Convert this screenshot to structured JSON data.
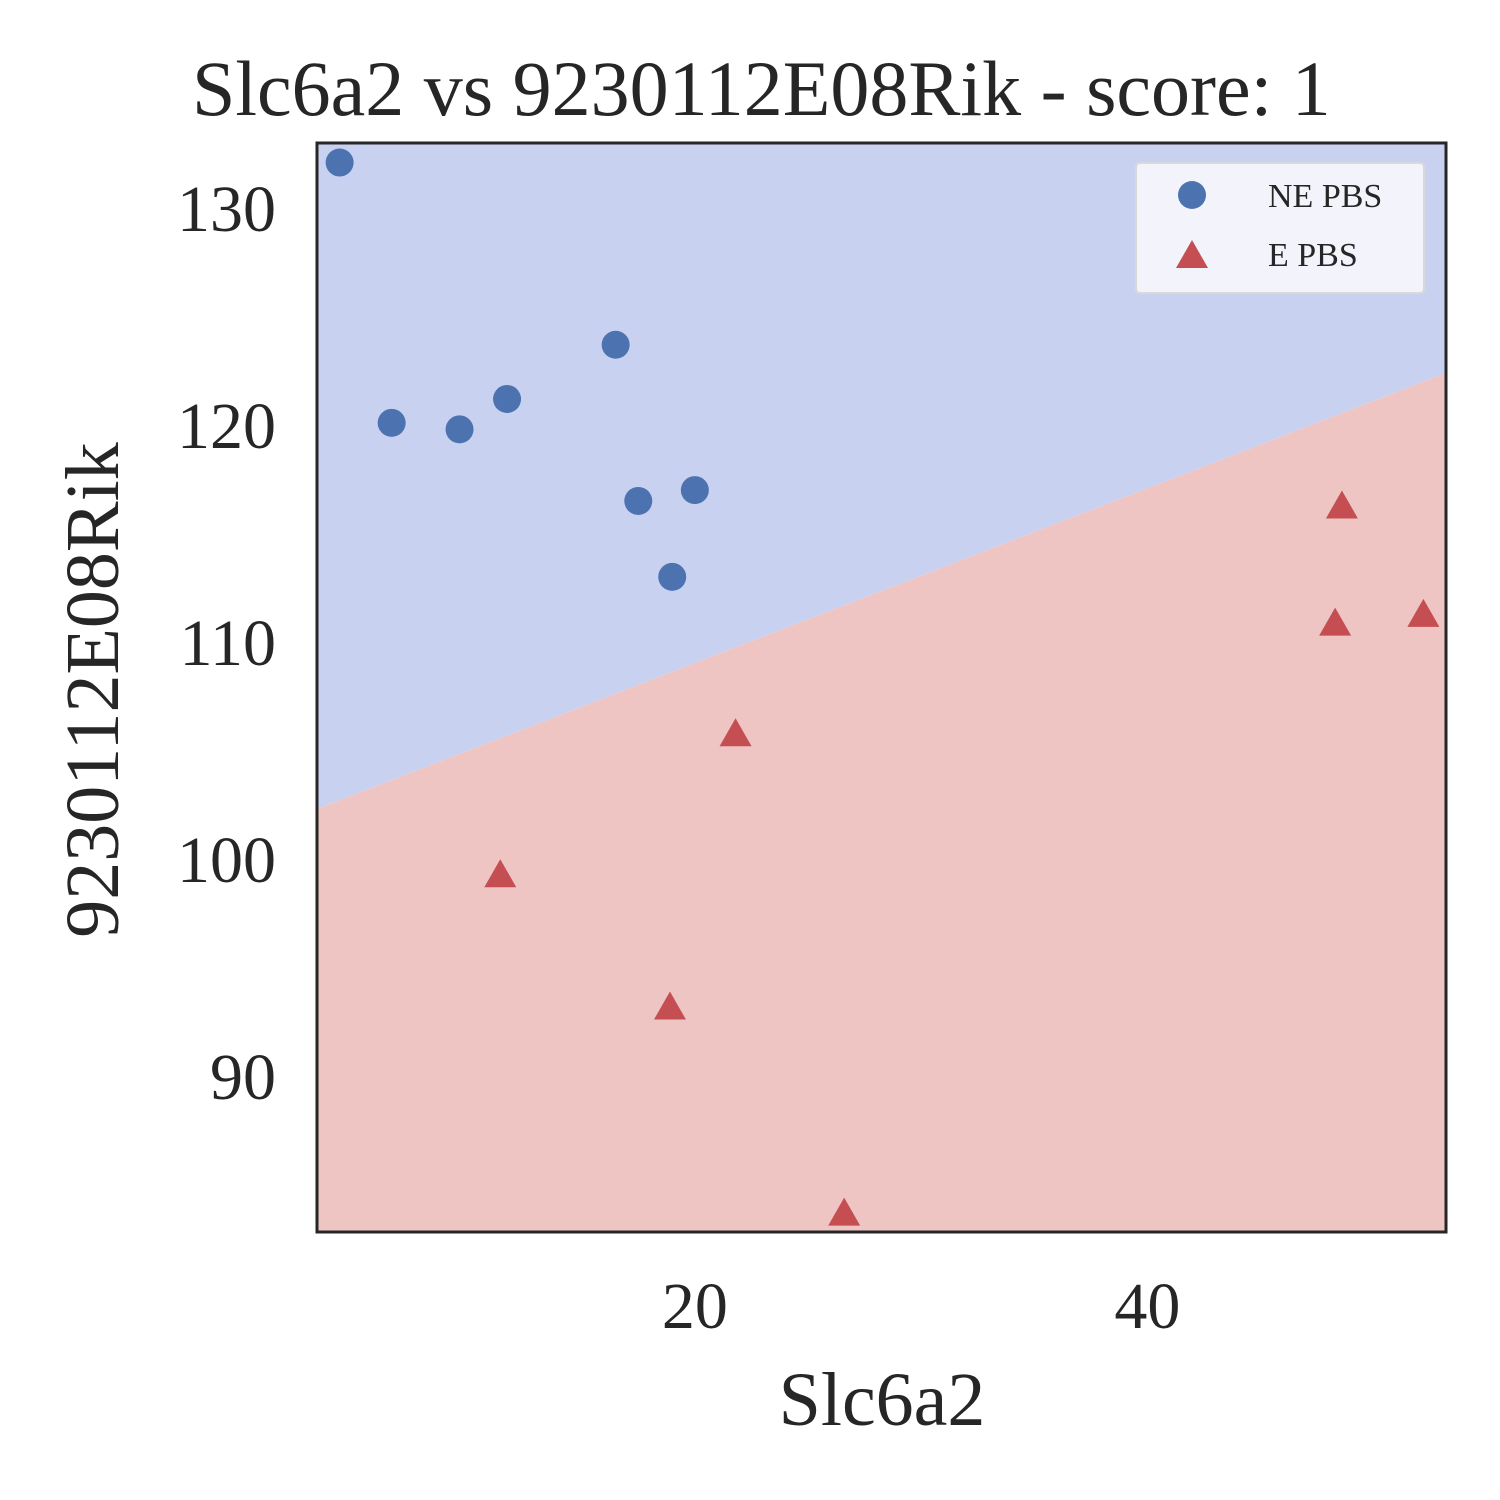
{
  "chart_data": {
    "type": "scatter",
    "title": "Slc6a2 vs 9230112E08Rik - score: 1",
    "xlabel": "Slc6a2",
    "ylabel": "9230112E08Rik",
    "xlim": [
      3.3,
      53.2
    ],
    "ylim": [
      82.8,
      133.0
    ],
    "xticks": [
      20,
      40
    ],
    "yticks": [
      90,
      100,
      110,
      120,
      130
    ],
    "grid": false,
    "legend_position": "top-right",
    "decision_boundary": {
      "points": [
        [
          3.3,
          102.3
        ],
        [
          53.2,
          122.4
        ]
      ],
      "region_above_color": "#c9d1f1",
      "region_below_color": "#efc5c4"
    },
    "series": [
      {
        "name": "NE PBS",
        "marker": "circle",
        "color": "#4c72b0",
        "points": [
          [
            4.3,
            132.1
          ],
          [
            6.6,
            120.1
          ],
          [
            9.6,
            119.8
          ],
          [
            11.7,
            121.2
          ],
          [
            16.5,
            123.7
          ],
          [
            17.5,
            116.5
          ],
          [
            19.0,
            113.0
          ],
          [
            20.0,
            117.0
          ]
        ]
      },
      {
        "name": "E PBS",
        "marker": "triangle",
        "color": "#c44e52",
        "points": [
          [
            11.4,
            99.2
          ],
          [
            18.9,
            93.1
          ],
          [
            21.8,
            105.7
          ],
          [
            26.6,
            83.6
          ],
          [
            48.3,
            110.8
          ],
          [
            48.6,
            116.2
          ],
          [
            52.2,
            111.2
          ]
        ]
      }
    ]
  }
}
